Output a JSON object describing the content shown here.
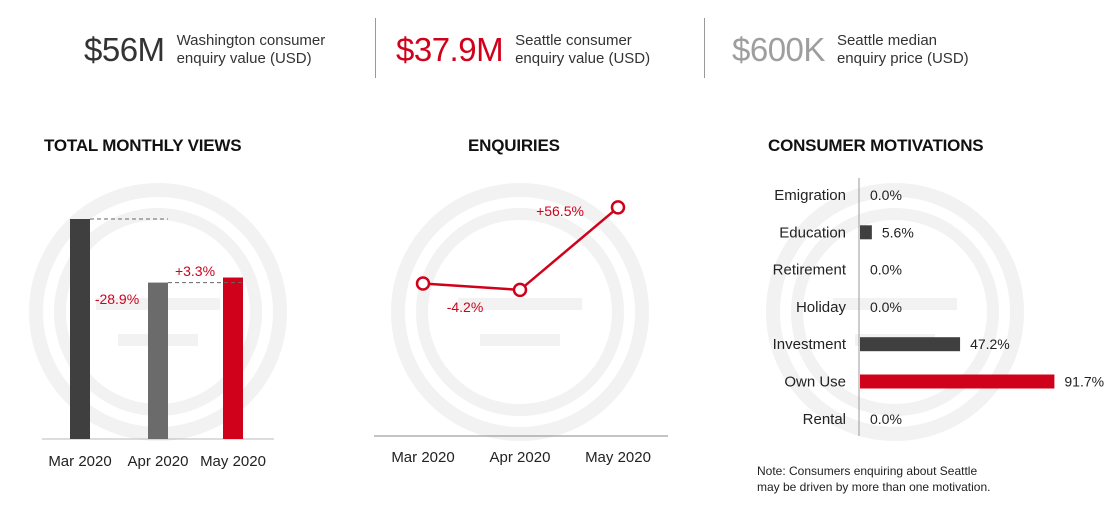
{
  "stats": [
    {
      "value": "$56M",
      "label_line1": "Washington consumer",
      "label_line2": "enquiry value (USD)",
      "color": "#333333"
    },
    {
      "value": "$37.9M",
      "label_line1": "Seattle consumer",
      "label_line2": "enquiry value (USD)",
      "color": "#d0021b"
    },
    {
      "value": "$600K",
      "label_line1": "Seattle median",
      "label_line2": "enquiry price (USD)",
      "color": "#9e9e9e"
    }
  ],
  "colors": {
    "red": "#d0021b",
    "dark": "#3f3f3f",
    "mid": "#6b6b6b",
    "watermark": "#f2f2f2"
  },
  "chart_data": [
    {
      "type": "bar",
      "title": "TOTAL MONTHLY VIEWS",
      "categories": [
        "Mar 2020",
        "Apr 2020",
        "May 2020"
      ],
      "values": [
        100,
        71.1,
        73.4
      ],
      "change_labels": [
        "-28.9%",
        "+3.3%"
      ],
      "colors": [
        "#3f3f3f",
        "#6b6b6b",
        "#d0021b"
      ],
      "ylim": [
        0,
        100
      ]
    },
    {
      "type": "line",
      "title": "ENQUIRIES",
      "categories": [
        "Mar 2020",
        "Apr 2020",
        "May 2020"
      ],
      "values": [
        100,
        95.8,
        149.9
      ],
      "change_labels": [
        "-4.2%",
        "+56.5%"
      ],
      "ylim": [
        0,
        160
      ]
    },
    {
      "type": "bar",
      "orientation": "horizontal",
      "title": "CONSUMER MOTIVATIONS",
      "categories": [
        "Emigration",
        "Education",
        "Retirement",
        "Holiday",
        "Investment",
        "Own Use",
        "Rental"
      ],
      "values": [
        0.0,
        5.6,
        0.0,
        0.0,
        47.2,
        91.7,
        0.0
      ],
      "value_labels": [
        "0.0%",
        "5.6%",
        "0.0%",
        "0.0%",
        "47.2%",
        "91.7%",
        "0.0%"
      ],
      "highlight": "Own Use",
      "xlim": [
        0,
        100
      ]
    }
  ],
  "note": {
    "line1": "Note: Consumers enquiring about Seattle",
    "line2": "may be driven by more than one motivation."
  }
}
